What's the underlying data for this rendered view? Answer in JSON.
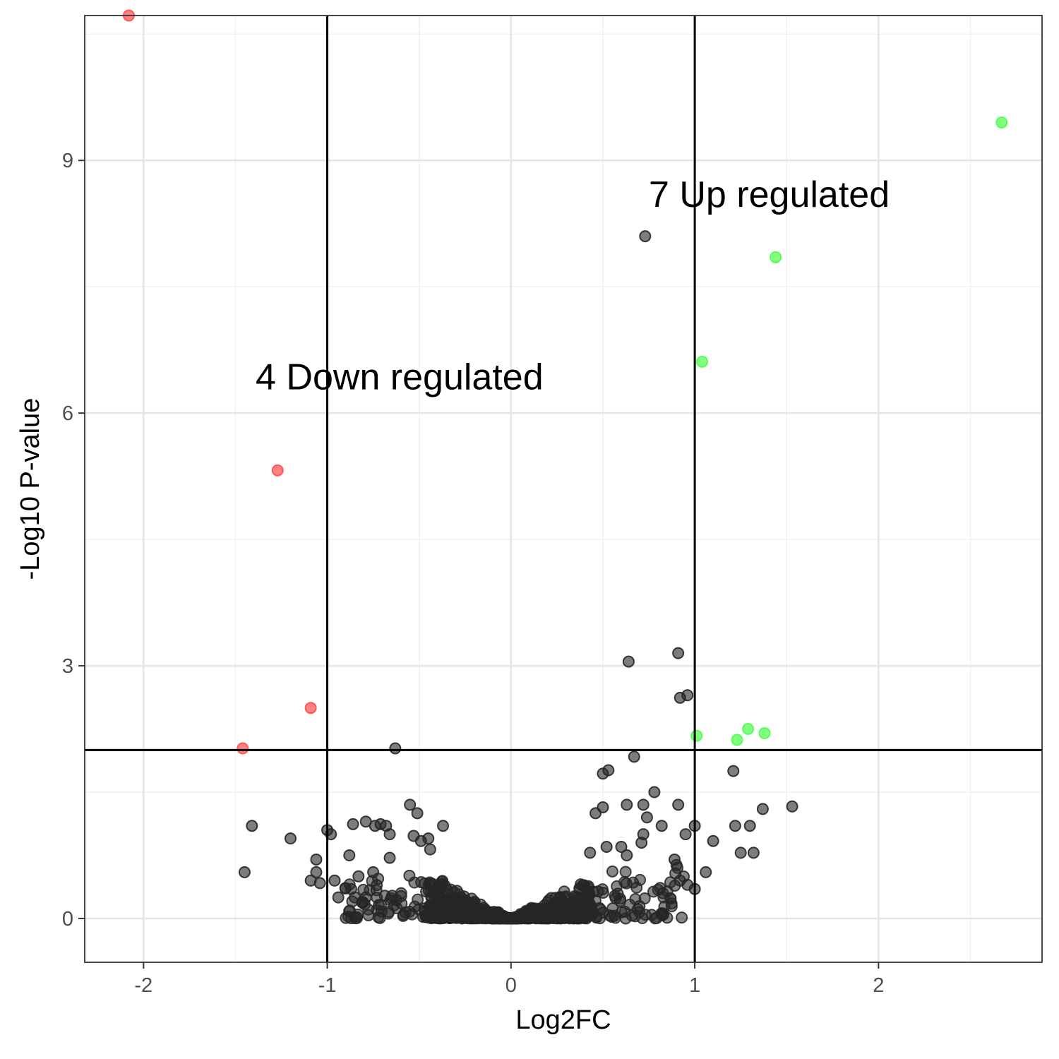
{
  "chart_data": {
    "type": "scatter",
    "title": "",
    "xlabel": "Log2FC",
    "ylabel": "-Log10 P-value",
    "xlim": [
      -2.32,
      2.89
    ],
    "ylim": [
      -0.52,
      10.72
    ],
    "x_ticks": [
      -2,
      -1,
      0,
      1,
      2
    ],
    "y_ticks": [
      0,
      3,
      6,
      9
    ],
    "x_minor_ticks": [
      -1.5,
      -0.5,
      0.5,
      1.5,
      2.5
    ],
    "y_minor_ticks": [
      1.5,
      4.5,
      7.5,
      10.5
    ],
    "grid": true,
    "thresholds": {
      "log2fc": [
        -1,
        1
      ],
      "neg_log10_p": 2
    },
    "annotations": [
      {
        "text": "7 Up regulated",
        "x": 0.75,
        "y": 8.45
      },
      {
        "text": "4 Down regulated",
        "x": -1.39,
        "y": 6.28
      }
    ],
    "colors": {
      "down": "#ff4d4d",
      "up": "#4dff4d",
      "ns": "#262626"
    },
    "groups": {
      "down": [
        [
          -2.08,
          10.72
        ],
        [
          -1.27,
          5.32
        ],
        [
          -1.09,
          2.5
        ],
        [
          -1.46,
          2.02
        ]
      ],
      "up": [
        [
          2.67,
          9.45
        ],
        [
          1.44,
          7.85
        ],
        [
          1.04,
          6.61
        ],
        [
          1.01,
          2.17
        ],
        [
          1.23,
          2.12
        ],
        [
          1.29,
          2.25
        ],
        [
          1.38,
          2.2
        ]
      ],
      "ns": [
        [
          0.73,
          8.1
        ],
        [
          0.91,
          3.15
        ],
        [
          0.64,
          3.05
        ],
        [
          0.96,
          2.65
        ],
        [
          0.92,
          2.62
        ],
        [
          -0.63,
          2.02
        ],
        [
          0.67,
          1.92
        ],
        [
          0.5,
          1.72
        ],
        [
          0.53,
          1.76
        ],
        [
          1.21,
          1.75
        ],
        [
          0.78,
          1.5
        ],
        [
          -0.55,
          1.35
        ],
        [
          0.5,
          1.32
        ],
        [
          0.63,
          1.35
        ],
        [
          0.72,
          1.35
        ],
        [
          0.91,
          1.35
        ],
        [
          1.53,
          1.33
        ],
        [
          1.37,
          1.3
        ],
        [
          0.46,
          1.25
        ],
        [
          -0.51,
          1.25
        ],
        [
          0.74,
          1.2
        ],
        [
          -1.41,
          1.1
        ],
        [
          -0.86,
          1.12
        ],
        [
          -0.79,
          1.15
        ],
        [
          -0.71,
          1.12
        ],
        [
          -0.74,
          1.1
        ],
        [
          -0.68,
          1.1
        ],
        [
          -0.37,
          1.1
        ],
        [
          1.0,
          1.1
        ],
        [
          1.22,
          1.1
        ],
        [
          1.3,
          1.1
        ],
        [
          0.82,
          1.1
        ],
        [
          -1.0,
          1.05
        ],
        [
          -0.98,
          1.0
        ],
        [
          -0.66,
          1.0
        ],
        [
          -0.45,
          0.95
        ],
        [
          -0.53,
          0.98
        ],
        [
          0.72,
          1.0
        ],
        [
          0.95,
          1.0
        ],
        [
          -1.2,
          0.95
        ],
        [
          1.1,
          0.92
        ],
        [
          -0.49,
          0.92
        ],
        [
          0.71,
          0.9
        ],
        [
          0.52,
          0.85
        ],
        [
          -0.44,
          0.82
        ],
        [
          0.6,
          0.85
        ],
        [
          1.25,
          0.78
        ],
        [
          1.32,
          0.78
        ],
        [
          0.43,
          0.78
        ],
        [
          0.63,
          0.75
        ],
        [
          0.89,
          0.7
        ],
        [
          -0.88,
          0.75
        ],
        [
          -0.66,
          0.72
        ],
        [
          -1.06,
          0.7
        ],
        [
          -1.45,
          0.55
        ],
        [
          1.06,
          0.55
        ],
        [
          -1.09,
          0.45
        ],
        [
          -1.06,
          0.55
        ],
        [
          -0.96,
          0.45
        ],
        [
          -0.75,
          0.55
        ],
        [
          -0.83,
          0.5
        ],
        [
          -1.04,
          0.42
        ],
        [
          -0.87,
          0.35
        ],
        [
          -0.94,
          0.25
        ],
        [
          -0.85,
          0.25
        ],
        [
          -0.79,
          0.25
        ],
        [
          0.96,
          0.4
        ],
        [
          1.0,
          0.35
        ],
        [
          0.92,
          0.45
        ]
      ]
    }
  }
}
